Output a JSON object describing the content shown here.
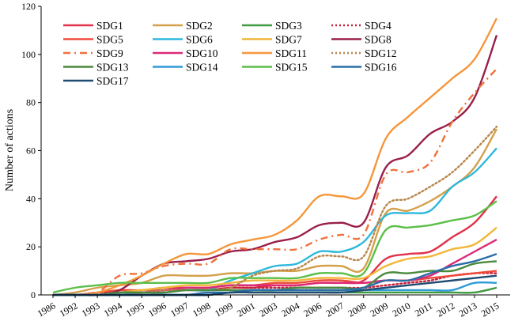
{
  "chart_data": {
    "type": "line",
    "title": "",
    "xlabel": "",
    "ylabel": "Number of actions",
    "ylim": [
      0,
      120
    ],
    "yticks": [
      0,
      20,
      40,
      60,
      80,
      100,
      120
    ],
    "legend_position": "top-left",
    "categories": [
      "1986",
      "1992",
      "1993",
      "1994",
      "1995",
      "1996",
      "1997",
      "1998",
      "1999",
      "2001",
      "2003",
      "2004",
      "2006",
      "2007",
      "2008",
      "2009",
      "2010",
      "2011",
      "2012",
      "2013",
      "2015"
    ],
    "series": [
      {
        "name": "SDG1",
        "color": "#e0304a",
        "dash": "solid",
        "values": [
          0,
          0,
          0,
          1,
          1,
          2,
          2,
          2,
          3,
          3,
          4,
          4,
          5,
          5,
          6,
          15,
          17,
          18,
          24,
          30,
          41
        ]
      },
      {
        "name": "SDG2",
        "color": "#d4a04a",
        "dash": "solid",
        "values": [
          0,
          1,
          3,
          4,
          5,
          8,
          8,
          8,
          9,
          9,
          10,
          10,
          12,
          12,
          11,
          34,
          35,
          39,
          45,
          53,
          69
        ]
      },
      {
        "name": "SDG3",
        "color": "#3f9a40",
        "dash": "solid",
        "values": [
          0,
          0,
          0,
          0,
          0,
          0,
          0,
          0,
          1,
          1,
          1,
          1,
          1,
          1,
          1,
          1,
          1,
          1,
          1,
          1,
          3
        ]
      },
      {
        "name": "SDG4",
        "color": "#c8203a",
        "dash": "dot",
        "values": [
          0,
          0,
          1,
          1,
          2,
          2,
          2,
          2,
          3,
          3,
          3,
          3,
          3,
          3,
          3,
          4,
          5,
          6,
          8,
          9,
          9
        ]
      },
      {
        "name": "SDG5",
        "color": "#ee4a3a",
        "dash": "solid",
        "values": [
          0,
          0,
          1,
          2,
          2,
          3,
          3,
          3,
          4,
          4,
          5,
          5,
          6,
          6,
          5,
          6,
          6,
          7,
          8,
          9,
          10
        ]
      },
      {
        "name": "SDG6",
        "color": "#2db8dc",
        "dash": "solid",
        "values": [
          0,
          0,
          0,
          0,
          1,
          1,
          2,
          2,
          6,
          9,
          12,
          13,
          18,
          18,
          22,
          33,
          34,
          35,
          45,
          51,
          61
        ]
      },
      {
        "name": "SDG7",
        "color": "#f2b63a",
        "dash": "solid",
        "values": [
          0,
          0,
          0,
          1,
          2,
          3,
          4,
          4,
          5,
          6,
          6,
          6,
          7,
          7,
          7,
          12,
          15,
          16,
          19,
          21,
          28
        ]
      },
      {
        "name": "SDG8",
        "color": "#9a1f4a",
        "dash": "solid",
        "values": [
          0,
          0,
          0,
          2,
          8,
          13,
          14,
          15,
          18,
          19,
          22,
          24,
          29,
          30,
          30,
          53,
          58,
          67,
          72,
          82,
          108
        ]
      },
      {
        "name": "SDG9",
        "color": "#f0703a",
        "dash": "dashdot",
        "values": [
          0,
          0,
          1,
          8,
          9,
          12,
          13,
          13,
          19,
          19,
          19,
          19,
          23,
          25,
          25,
          50,
          51,
          55,
          72,
          84,
          94
        ]
      },
      {
        "name": "SDG10",
        "color": "#dc2a78",
        "dash": "solid",
        "values": [
          0,
          0,
          0,
          1,
          1,
          2,
          3,
          3,
          4,
          4,
          4,
          4,
          5,
          5,
          5,
          6,
          6,
          8,
          13,
          18,
          23
        ]
      },
      {
        "name": "SDG11",
        "color": "#f5963a",
        "dash": "solid",
        "values": [
          0,
          0,
          1,
          4,
          8,
          13,
          17,
          17,
          21,
          23,
          25,
          31,
          41,
          41,
          42,
          65,
          74,
          82,
          90,
          98,
          115
        ]
      },
      {
        "name": "SDG12",
        "color": "#b8864a",
        "dash": "dot",
        "values": [
          0,
          0,
          0,
          1,
          1,
          2,
          2,
          2,
          3,
          8,
          10,
          11,
          16,
          16,
          16,
          37,
          40,
          45,
          51,
          60,
          70
        ]
      },
      {
        "name": "SDG13",
        "color": "#4a8a3c",
        "dash": "solid",
        "values": [
          0,
          0,
          0,
          1,
          1,
          1,
          2,
          2,
          2,
          2,
          2,
          3,
          3,
          3,
          3,
          9,
          9,
          10,
          10,
          13,
          14
        ]
      },
      {
        "name": "SDG14",
        "color": "#2f9ad8",
        "dash": "solid",
        "values": [
          0,
          0,
          0,
          0,
          0,
          0,
          0,
          0,
          1,
          2,
          2,
          2,
          2,
          2,
          2,
          2,
          2,
          2,
          2,
          5,
          5
        ]
      },
      {
        "name": "SDG15",
        "color": "#5cbf4a",
        "dash": "solid",
        "values": [
          1,
          3,
          4,
          5,
          5,
          5,
          5,
          5,
          7,
          7,
          7,
          7,
          9,
          9,
          9,
          27,
          28,
          29,
          31,
          33,
          39
        ]
      },
      {
        "name": "SDG16",
        "color": "#2a6ea8",
        "dash": "solid",
        "values": [
          0,
          0,
          0,
          0,
          0,
          0,
          0,
          1,
          1,
          2,
          2,
          2,
          2,
          2,
          3,
          6,
          6,
          9,
          12,
          14,
          17
        ]
      },
      {
        "name": "SDG17",
        "color": "#1f4a72",
        "dash": "solid",
        "values": [
          0,
          0,
          0,
          0,
          0,
          0,
          0,
          0,
          1,
          1,
          1,
          1,
          1,
          1,
          2,
          3,
          4,
          5,
          6,
          7,
          8
        ]
      }
    ]
  }
}
